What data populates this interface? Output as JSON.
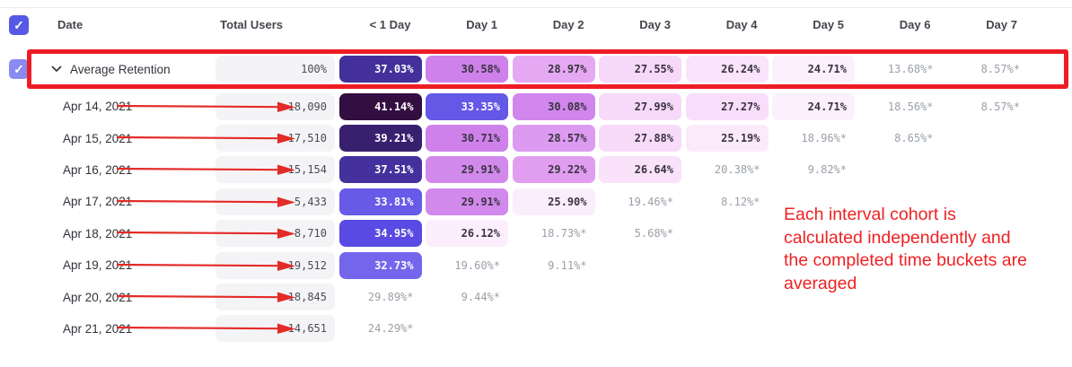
{
  "header": {
    "columns": [
      "Date",
      "Total Users",
      "< 1 Day",
      "Day 1",
      "Day 2",
      "Day 3",
      "Day 4",
      "Day 5",
      "Day 6",
      "Day 7"
    ]
  },
  "rows": [
    {
      "label": "Average Retention",
      "kind": "average",
      "checkbox": true,
      "chevron": true,
      "arrow": false,
      "total": "100%",
      "cells": [
        {
          "v": "37.03%",
          "bg": "#43309b",
          "fg": "#ffffff"
        },
        {
          "v": "30.58%",
          "bg": "#ce81eb",
          "fg": "#3a3440"
        },
        {
          "v": "28.97%",
          "bg": "#e4a9f2",
          "fg": "#3a3440"
        },
        {
          "v": "27.55%",
          "bg": "#f6d8f9",
          "fg": "#3a3440"
        },
        {
          "v": "26.24%",
          "bg": "#f9e4fb",
          "fg": "#3a3440"
        },
        {
          "v": "24.71%",
          "bg": "#fcf0fd",
          "fg": "#3a3440"
        },
        {
          "v": "13.68%*",
          "bg": null,
          "fg": "#9aa0a8"
        },
        {
          "v": "8.57%*",
          "bg": null,
          "fg": "#9aa0a8"
        }
      ]
    },
    {
      "label": "Apr 14, 2021",
      "kind": "date",
      "checkbox": false,
      "chevron": false,
      "arrow": true,
      "total": "18,090",
      "cells": [
        {
          "v": "41.14%",
          "bg": "#330e41",
          "fg": "#ffffff"
        },
        {
          "v": "33.35%",
          "bg": "#6458e7",
          "fg": "#ffffff"
        },
        {
          "v": "30.08%",
          "bg": "#d086ec",
          "fg": "#3a3440"
        },
        {
          "v": "27.99%",
          "bg": "#f7daf9",
          "fg": "#3a3440"
        },
        {
          "v": "27.27%",
          "bg": "#f8defa",
          "fg": "#3a3440"
        },
        {
          "v": "24.71%",
          "bg": "#fcf0fd",
          "fg": "#3a3440"
        },
        {
          "v": "18.56%*",
          "bg": null,
          "fg": "#9aa0a8"
        },
        {
          "v": "8.57%*",
          "bg": null,
          "fg": "#9aa0a8"
        }
      ]
    },
    {
      "label": "Apr 15, 2021",
      "kind": "date",
      "checkbox": false,
      "chevron": false,
      "arrow": true,
      "total": "17,510",
      "cells": [
        {
          "v": "39.21%",
          "bg": "#38206f",
          "fg": "#ffffff"
        },
        {
          "v": "30.71%",
          "bg": "#ce81eb",
          "fg": "#3a3440"
        },
        {
          "v": "28.57%",
          "bg": "#dc9bf0",
          "fg": "#3a3440"
        },
        {
          "v": "27.88%",
          "bg": "#f7dbf9",
          "fg": "#3a3440"
        },
        {
          "v": "25.19%",
          "bg": "#fbeafc",
          "fg": "#3a3440"
        },
        {
          "v": "18.96%*",
          "bg": null,
          "fg": "#9aa0a8"
        },
        {
          "v": "8.65%*",
          "bg": null,
          "fg": "#9aa0a8"
        },
        null
      ]
    },
    {
      "label": "Apr 16, 2021",
      "kind": "date",
      "checkbox": false,
      "chevron": false,
      "arrow": true,
      "total": "15,154",
      "cells": [
        {
          "v": "37.51%",
          "bg": "#44319e",
          "fg": "#ffffff"
        },
        {
          "v": "29.91%",
          "bg": "#d189ec",
          "fg": "#3a3440"
        },
        {
          "v": "29.22%",
          "bg": "#e19ef1",
          "fg": "#3a3440"
        },
        {
          "v": "26.64%",
          "bg": "#f9e2fa",
          "fg": "#3a3440"
        },
        {
          "v": "20.38%*",
          "bg": null,
          "fg": "#9aa0a8"
        },
        {
          "v": "9.82%*",
          "bg": null,
          "fg": "#9aa0a8"
        },
        null,
        null
      ]
    },
    {
      "label": "Apr 17, 2021",
      "kind": "date",
      "checkbox": false,
      "chevron": false,
      "arrow": true,
      "total": "5,433",
      "cells": [
        {
          "v": "33.81%",
          "bg": "#675ae8",
          "fg": "#ffffff"
        },
        {
          "v": "29.91%",
          "bg": "#d189ec",
          "fg": "#3a3440"
        },
        {
          "v": "25.90%",
          "bg": "#fbeefc",
          "fg": "#3a3440"
        },
        {
          "v": "19.46%*",
          "bg": null,
          "fg": "#9aa0a8"
        },
        {
          "v": "8.12%*",
          "bg": null,
          "fg": "#9aa0a8"
        },
        null,
        null,
        null
      ]
    },
    {
      "label": "Apr 18, 2021",
      "kind": "date",
      "checkbox": false,
      "chevron": false,
      "arrow": true,
      "total": "8,710",
      "cells": [
        {
          "v": "34.95%",
          "bg": "#584ae2",
          "fg": "#ffffff"
        },
        {
          "v": "26.12%",
          "bg": "#fceefd",
          "fg": "#3a3440"
        },
        {
          "v": "18.73%*",
          "bg": null,
          "fg": "#9aa0a8"
        },
        {
          "v": "5.68%*",
          "bg": null,
          "fg": "#9aa0a8"
        },
        null,
        null,
        null,
        null
      ]
    },
    {
      "label": "Apr 19, 2021",
      "kind": "date",
      "checkbox": false,
      "chevron": false,
      "arrow": true,
      "total": "19,512",
      "cells": [
        {
          "v": "32.73%",
          "bg": "#7466ec",
          "fg": "#ffffff"
        },
        {
          "v": "19.60%*",
          "bg": null,
          "fg": "#9aa0a8"
        },
        {
          "v": "9.11%*",
          "bg": null,
          "fg": "#9aa0a8"
        },
        null,
        null,
        null,
        null,
        null
      ]
    },
    {
      "label": "Apr 20, 2021",
      "kind": "date",
      "checkbox": false,
      "chevron": false,
      "arrow": true,
      "total": "18,845",
      "cells": [
        {
          "v": "29.89%*",
          "bg": null,
          "fg": "#9aa0a8"
        },
        {
          "v": "9.44%*",
          "bg": null,
          "fg": "#9aa0a8"
        },
        null,
        null,
        null,
        null,
        null,
        null
      ]
    },
    {
      "label": "Apr 21, 2021",
      "kind": "date",
      "checkbox": false,
      "chevron": false,
      "arrow": true,
      "total": "14,651",
      "cells": [
        {
          "v": "24.29%*",
          "bg": null,
          "fg": "#9aa0a8"
        },
        null,
        null,
        null,
        null,
        null,
        null,
        null
      ]
    }
  ],
  "annotation": {
    "lines": [
      "Each interval cohort is",
      "calculated independently and",
      "the completed time buckets are",
      "averaged"
    ],
    "color": "#ef2123"
  },
  "colors": {
    "accent_checkbox": "#5659e6",
    "row_checkbox": "#888bf1",
    "highlight_frame": "#ee1c24",
    "arrow_red": "#e32b28",
    "total_cell_bg": "#f4f4f6",
    "header_text": "#45454e",
    "star_text": "#9aa0a8"
  }
}
